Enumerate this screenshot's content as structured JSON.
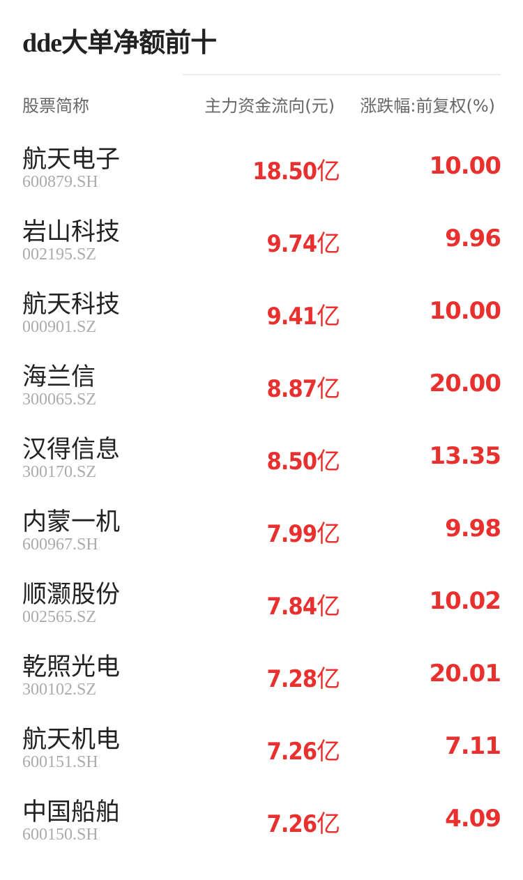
{
  "title": "dde大单净额前十",
  "headers": {
    "name": "股票简称",
    "flow": "主力资金流向(元)",
    "change": "涨跌幅:前复权(%)"
  },
  "accent_color": "#e8312f",
  "unit": "亿",
  "rows": [
    {
      "name": "航天电子",
      "code": "600879.SH",
      "flow": "18.50",
      "change": "10.00"
    },
    {
      "name": "岩山科技",
      "code": "002195.SZ",
      "flow": "9.74",
      "change": "9.96"
    },
    {
      "name": "航天科技",
      "code": "000901.SZ",
      "flow": "9.41",
      "change": "10.00"
    },
    {
      "name": "海兰信",
      "code": "300065.SZ",
      "flow": "8.87",
      "change": "20.00"
    },
    {
      "name": "汉得信息",
      "code": "300170.SZ",
      "flow": "8.50",
      "change": "13.35"
    },
    {
      "name": "内蒙一机",
      "code": "600967.SH",
      "flow": "7.99",
      "change": "9.98"
    },
    {
      "name": "顺灏股份",
      "code": "002565.SZ",
      "flow": "7.84",
      "change": "10.02"
    },
    {
      "name": "乾照光电",
      "code": "300102.SZ",
      "flow": "7.28",
      "change": "20.01"
    },
    {
      "name": "航天机电",
      "code": "600151.SH",
      "flow": "7.26",
      "change": "7.11"
    },
    {
      "name": "中国船舶",
      "code": "600150.SH",
      "flow": "7.26",
      "change": "4.09"
    }
  ]
}
